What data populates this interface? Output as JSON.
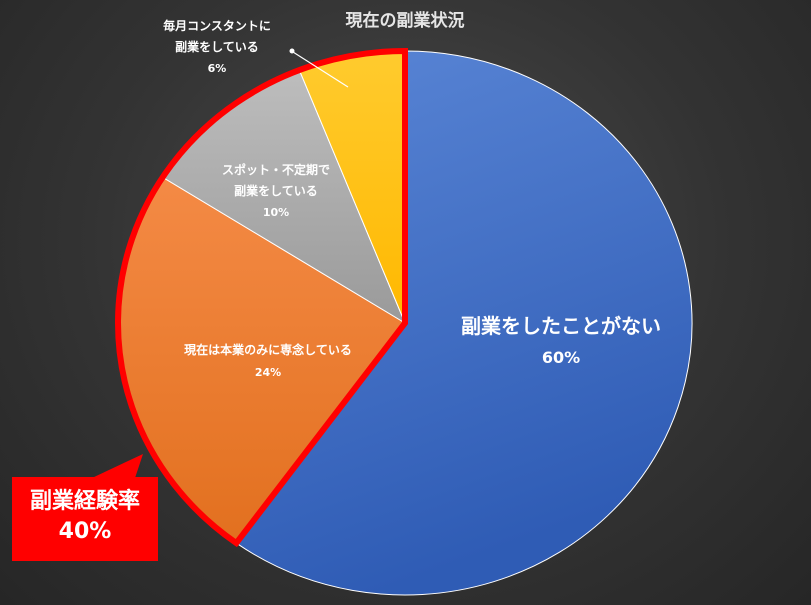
{
  "chart_data": {
    "type": "pie",
    "title": "現在の副業状況",
    "slices": [
      {
        "lines": [
          "副業をしたことがない"
        ],
        "value_label": "60%",
        "value": 60,
        "color": "#4472c4"
      },
      {
        "lines": [
          "現在は本業のみに専念している"
        ],
        "value_label": "24%",
        "value": 24,
        "color": "#ed7d31"
      },
      {
        "lines": [
          "スポット・不定期で",
          "副業をしている"
        ],
        "value_label": "10%",
        "value": 10,
        "color": "#a5a5a5"
      },
      {
        "lines": [
          "毎月コンスタントに",
          "副業をしている"
        ],
        "value_label": "6%",
        "value": 6,
        "color": "#ffc000"
      }
    ],
    "highlight": {
      "color": "#ff0000"
    }
  },
  "callout": {
    "title": "副業経験率",
    "value": "40%"
  }
}
